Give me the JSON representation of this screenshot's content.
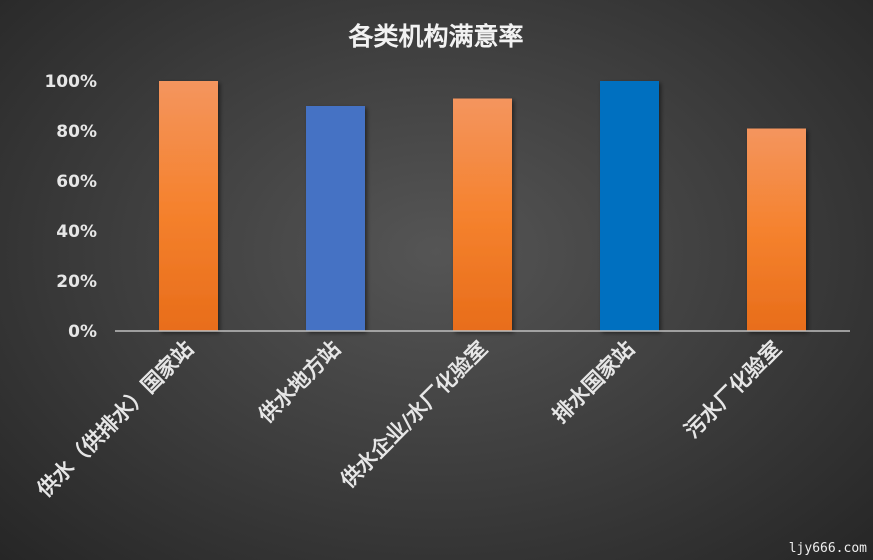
{
  "chart_data": {
    "type": "bar",
    "title": "各类机构满意率",
    "categories": [
      "供水（供排水）国家站",
      "供水地方站",
      "供水企业/水厂化验室",
      "排水国家站",
      "污水厂化验室"
    ],
    "values": [
      100,
      90,
      93,
      100,
      81
    ],
    "value_unit": "%",
    "colors": [
      "#f08030",
      "#4472c4",
      "#f08030",
      "#0070c0",
      "#f08030"
    ],
    "ylim": [
      0,
      100
    ],
    "yticks": [
      "0%",
      "20%",
      "40%",
      "60%",
      "80%",
      "100%"
    ],
    "grid": false,
    "legend": "none",
    "xlabel": "",
    "ylabel": ""
  },
  "watermark": "ljy666.com"
}
